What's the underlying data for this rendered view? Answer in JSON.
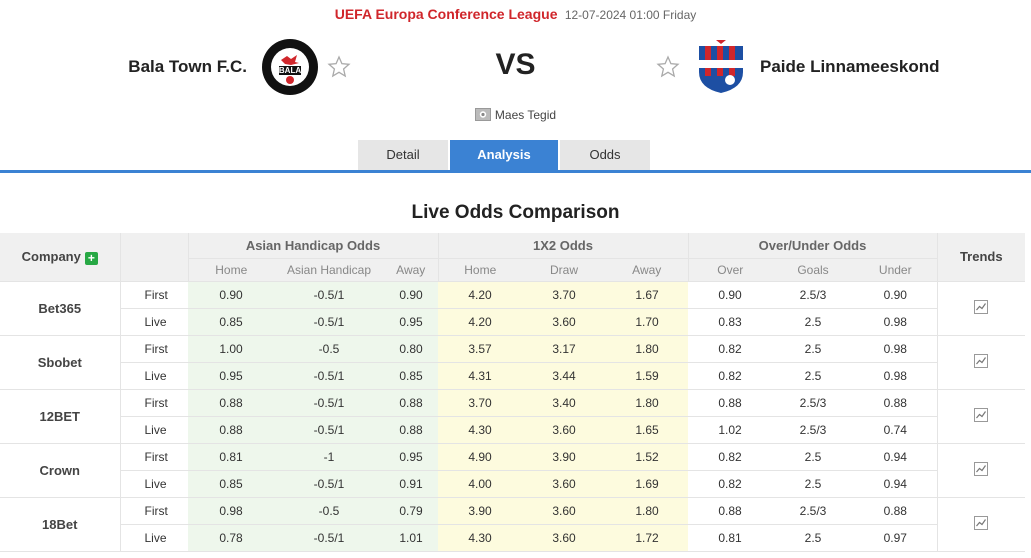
{
  "league": {
    "name": "UEFA Europa Conference League",
    "datetime": "12-07-2024 01:00 Friday"
  },
  "home_team": {
    "name": "Bala Town F.C.",
    "crest_text": "BALA"
  },
  "away_team": {
    "name": "Paide Linnameeskond"
  },
  "vs_label": "VS",
  "venue": "Maes Tegid",
  "tabs": [
    {
      "label": "Detail",
      "active": false
    },
    {
      "label": "Analysis",
      "active": true
    },
    {
      "label": "Odds",
      "active": false
    }
  ],
  "section_title": "Live Odds Comparison",
  "table": {
    "company_header": "Company",
    "groups": [
      "Asian Handicap Odds",
      "1X2 Odds",
      "Over/Under Odds"
    ],
    "trends_header": "Trends",
    "subheaders": [
      "Home",
      "Asian Handicap",
      "Away",
      "Home",
      "Draw",
      "Away",
      "Over",
      "Goals",
      "Under"
    ],
    "companies": [
      {
        "name": "Bet365",
        "rows": [
          {
            "type": "First",
            "ah": [
              "0.90",
              "-0.5/1",
              "0.90"
            ],
            "x12": [
              "4.20",
              "3.70",
              "1.67"
            ],
            "ou": [
              "0.90",
              "2.5/3",
              "0.90"
            ]
          },
          {
            "type": "Live",
            "ah": [
              "0.85",
              "-0.5/1",
              "0.95"
            ],
            "x12": [
              "4.20",
              "3.60",
              "1.70"
            ],
            "ou": [
              "0.83",
              "2.5",
              "0.98"
            ]
          }
        ]
      },
      {
        "name": "Sbobet",
        "rows": [
          {
            "type": "First",
            "ah": [
              "1.00",
              "-0.5",
              "0.80"
            ],
            "x12": [
              "3.57",
              "3.17",
              "1.80"
            ],
            "ou": [
              "0.82",
              "2.5",
              "0.98"
            ]
          },
          {
            "type": "Live",
            "ah": [
              "0.95",
              "-0.5/1",
              "0.85"
            ],
            "x12": [
              "4.31",
              "3.44",
              "1.59"
            ],
            "ou": [
              "0.82",
              "2.5",
              "0.98"
            ]
          }
        ]
      },
      {
        "name": "12BET",
        "rows": [
          {
            "type": "First",
            "ah": [
              "0.88",
              "-0.5/1",
              "0.88"
            ],
            "x12": [
              "3.70",
              "3.40",
              "1.80"
            ],
            "ou": [
              "0.88",
              "2.5/3",
              "0.88"
            ]
          },
          {
            "type": "Live",
            "ah": [
              "0.88",
              "-0.5/1",
              "0.88"
            ],
            "x12": [
              "4.30",
              "3.60",
              "1.65"
            ],
            "ou": [
              "1.02",
              "2.5/3",
              "0.74"
            ]
          }
        ]
      },
      {
        "name": "Crown",
        "rows": [
          {
            "type": "First",
            "ah": [
              "0.81",
              "-1",
              "0.95"
            ],
            "x12": [
              "4.90",
              "3.90",
              "1.52"
            ],
            "ou": [
              "0.82",
              "2.5",
              "0.94"
            ]
          },
          {
            "type": "Live",
            "ah": [
              "0.85",
              "-0.5/1",
              "0.91"
            ],
            "x12": [
              "4.00",
              "3.60",
              "1.69"
            ],
            "ou": [
              "0.82",
              "2.5",
              "0.94"
            ]
          }
        ]
      },
      {
        "name": "18Bet",
        "rows": [
          {
            "type": "First",
            "ah": [
              "0.98",
              "-0.5",
              "0.79"
            ],
            "x12": [
              "3.90",
              "3.60",
              "1.80"
            ],
            "ou": [
              "0.88",
              "2.5/3",
              "0.88"
            ]
          },
          {
            "type": "Live",
            "ah": [
              "0.78",
              "-0.5/1",
              "1.01"
            ],
            "x12": [
              "4.30",
              "3.60",
              "1.72"
            ],
            "ou": [
              "0.81",
              "2.5",
              "0.97"
            ]
          }
        ]
      }
    ]
  },
  "colors": {
    "league": "#d0262b",
    "accent": "#3b82d3",
    "ah_bg": "#eef7ec",
    "x12_bg": "#fdfbde",
    "add": "#27a844"
  }
}
